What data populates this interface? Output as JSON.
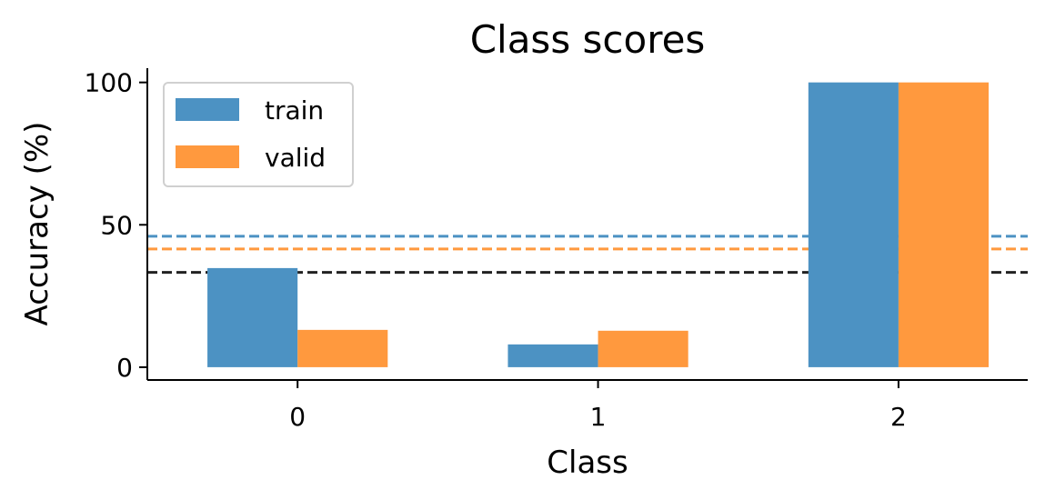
{
  "chart_data": {
    "type": "bar",
    "title": "Class scores",
    "xlabel": "Class",
    "ylabel": "Accuracy (%)",
    "categories": [
      "0",
      "1",
      "2"
    ],
    "series": [
      {
        "name": "train",
        "values": [
          34.8,
          8.0,
          100.0
        ],
        "color": "#4c92c3"
      },
      {
        "name": "valid",
        "values": [
          13.1,
          12.8,
          100.0
        ],
        "color": "#ff993e"
      }
    ],
    "reference_lines": [
      {
        "value": 46.0,
        "color": "#4c92c3",
        "style": "dashed"
      },
      {
        "value": 41.5,
        "color": "#ff993e",
        "style": "dashed"
      },
      {
        "value": 33.3,
        "color": "#222222",
        "style": "dashed"
      }
    ],
    "yticks": [
      0,
      50,
      100
    ],
    "ylim": [
      -4.5,
      105
    ],
    "xlim": [
      -0.5,
      2.43
    ],
    "grid": false,
    "legend_position": "top-left"
  }
}
